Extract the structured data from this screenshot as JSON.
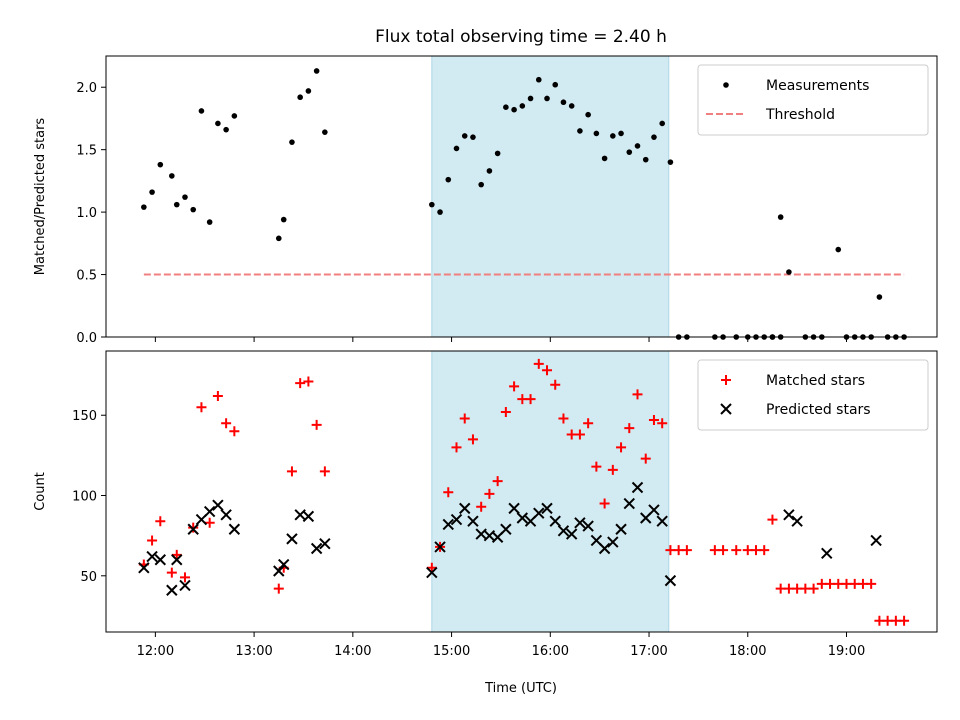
{
  "title": "Flux total observing time = 2.40 h",
  "xlabel": "Time (UTC)",
  "colors": {
    "measurements": "#000000",
    "threshold": "#f08080",
    "matched": "#ff0000",
    "predicted": "#000000",
    "shade": "#add8e6"
  },
  "chart_data": [
    {
      "type": "scatter",
      "xlabel": "",
      "ylabel": "Matched/Predicted stars",
      "xlim": [
        "11:30",
        "19:55"
      ],
      "ylim": [
        0,
        2.25
      ],
      "yticks": [
        0.0,
        0.5,
        1.0,
        1.5,
        2.0
      ],
      "ytick_labels": [
        "0.0",
        "0.5",
        "1.0",
        "1.5",
        "2.0"
      ],
      "grid": false,
      "legend": "top-right",
      "shaded_region": {
        "x": [
          "14:48",
          "17:12"
        ]
      },
      "threshold": {
        "name": "Threshold",
        "y": 0.5,
        "x": [
          "11:53",
          "19:35"
        ]
      },
      "series": [
        {
          "name": "Measurements",
          "marker": "dot",
          "x": [
            "11:53",
            "11:58",
            "12:03",
            "12:10",
            "12:13",
            "12:18",
            "12:23",
            "12:28",
            "12:33",
            "12:38",
            "12:43",
            "12:48",
            "13:15",
            "13:18",
            "13:23",
            "13:28",
            "13:33",
            "13:38",
            "13:43",
            "14:48",
            "14:53",
            "14:58",
            "15:03",
            "15:08",
            "15:13",
            "15:18",
            "15:23",
            "15:28",
            "15:33",
            "15:38",
            "15:43",
            "15:48",
            "15:53",
            "15:58",
            "16:03",
            "16:08",
            "16:13",
            "16:18",
            "16:23",
            "16:28",
            "16:33",
            "16:38",
            "16:43",
            "16:48",
            "16:53",
            "16:58",
            "17:03",
            "17:08",
            "17:13",
            "17:18",
            "17:23",
            "17:40",
            "17:45",
            "17:53",
            "18:00",
            "18:05",
            "18:10",
            "18:15",
            "18:20",
            "18:25",
            "18:35",
            "18:40",
            "18:45",
            "18:55",
            "19:00",
            "19:05",
            "19:10",
            "19:15",
            "19:20",
            "19:25",
            "19:30",
            "19:35"
          ],
          "y": [
            1.04,
            1.16,
            1.38,
            1.29,
            1.06,
            1.12,
            1.02,
            1.81,
            0.92,
            1.71,
            1.66,
            1.77,
            0.79,
            0.94,
            1.56,
            1.92,
            1.97,
            2.13,
            1.64,
            1.06,
            1.0,
            1.26,
            1.51,
            1.61,
            1.6,
            1.22,
            1.33,
            1.47,
            1.84,
            1.82,
            1.85,
            1.91,
            2.06,
            1.91,
            2.02,
            1.88,
            1.85,
            1.65,
            1.78,
            1.63,
            1.43,
            1.61,
            1.63,
            1.48,
            1.53,
            1.42,
            1.6,
            1.71,
            1.4,
            0,
            0,
            0,
            0,
            0,
            0,
            0,
            0,
            0,
            0.96,
            0.52,
            0,
            0,
            0,
            0.7,
            0,
            0,
            0,
            0,
            0.32,
            0,
            0,
            0
          ]
        },
        {
          "name": "",
          "marker": "dot",
          "x": [
            "18:15",
            "18:20"
          ],
          "y": [
            0,
            0
          ]
        }
      ]
    },
    {
      "type": "scatter",
      "xlabel": "Time (UTC)",
      "ylabel": "Count",
      "xlim": [
        "11:30",
        "19:55"
      ],
      "ylim": [
        15,
        190
      ],
      "yticks": [
        50,
        100,
        150
      ],
      "xticks": [
        "12:00",
        "13:00",
        "14:00",
        "15:00",
        "16:00",
        "17:00",
        "18:00",
        "19:00"
      ],
      "grid": false,
      "legend": "top-right",
      "shaded_region": {
        "x": [
          "14:48",
          "17:12"
        ]
      },
      "series": [
        {
          "name": "Matched stars",
          "marker": "plus",
          "x": [
            "11:53",
            "11:58",
            "12:03",
            "12:10",
            "12:13",
            "12:18",
            "12:23",
            "12:28",
            "12:33",
            "12:38",
            "12:43",
            "12:48",
            "13:15",
            "13:18",
            "13:23",
            "13:28",
            "13:33",
            "13:38",
            "13:43",
            "14:48",
            "14:53",
            "14:58",
            "15:03",
            "15:08",
            "15:13",
            "15:18",
            "15:23",
            "15:28",
            "15:33",
            "15:38",
            "15:43",
            "15:48",
            "15:53",
            "15:58",
            "16:03",
            "16:08",
            "16:13",
            "16:18",
            "16:23",
            "16:28",
            "16:33",
            "16:38",
            "16:43",
            "16:48",
            "16:53",
            "16:58",
            "17:03",
            "17:08",
            "17:13",
            "17:18",
            "17:23",
            "17:40",
            "17:45",
            "17:53",
            "18:00",
            "18:05",
            "18:10",
            "18:15",
            "18:20",
            "18:25",
            "18:30",
            "18:35",
            "18:40",
            "18:45",
            "18:50",
            "18:55",
            "19:00",
            "19:05",
            "19:10",
            "19:15",
            "19:20",
            "19:25",
            "19:30",
            "19:35"
          ],
          "y": [
            57,
            72,
            84,
            52,
            63,
            49,
            80,
            155,
            83,
            162,
            145,
            140,
            42,
            55,
            115,
            170,
            171,
            144,
            115,
            55,
            68,
            102,
            130,
            148,
            135,
            93,
            101,
            109,
            152,
            168,
            160,
            160,
            182,
            178,
            169,
            148,
            138,
            138,
            145,
            118,
            95,
            116,
            130,
            142,
            163,
            123,
            147,
            145,
            66,
            66,
            66,
            66,
            66,
            66,
            66,
            66,
            66,
            85,
            42,
            42,
            42,
            42,
            42,
            45,
            45,
            45,
            45,
            45,
            45,
            45,
            22,
            22,
            22,
            22
          ]
        },
        {
          "name": "Predicted stars",
          "marker": "x",
          "x": [
            "11:53",
            "11:58",
            "12:03",
            "12:10",
            "12:13",
            "12:18",
            "12:23",
            "12:28",
            "12:33",
            "12:38",
            "12:43",
            "12:48",
            "13:15",
            "13:18",
            "13:23",
            "13:28",
            "13:33",
            "13:38",
            "13:43",
            "14:48",
            "14:53",
            "14:58",
            "15:03",
            "15:08",
            "15:13",
            "15:18",
            "15:23",
            "15:28",
            "15:33",
            "15:38",
            "15:43",
            "15:48",
            "15:53",
            "15:58",
            "16:03",
            "16:08",
            "16:13",
            "16:18",
            "16:23",
            "16:28",
            "16:33",
            "16:38",
            "16:43",
            "16:48",
            "16:53",
            "16:58",
            "17:03",
            "17:08",
            "17:13",
            "18:25",
            "18:30",
            "18:48",
            "19:18"
          ],
          "y": [
            55,
            62,
            60,
            41,
            60,
            44,
            79,
            85,
            90,
            94,
            88,
            79,
            53,
            57,
            73,
            88,
            87,
            67,
            70,
            52,
            68,
            82,
            85,
            92,
            84,
            76,
            75,
            74,
            79,
            92,
            86,
            84,
            89,
            92,
            84,
            78,
            76,
            83,
            81,
            72,
            67,
            71,
            79,
            95,
            105,
            86,
            91,
            84,
            47,
            88,
            84,
            64,
            72
          ]
        }
      ]
    }
  ]
}
